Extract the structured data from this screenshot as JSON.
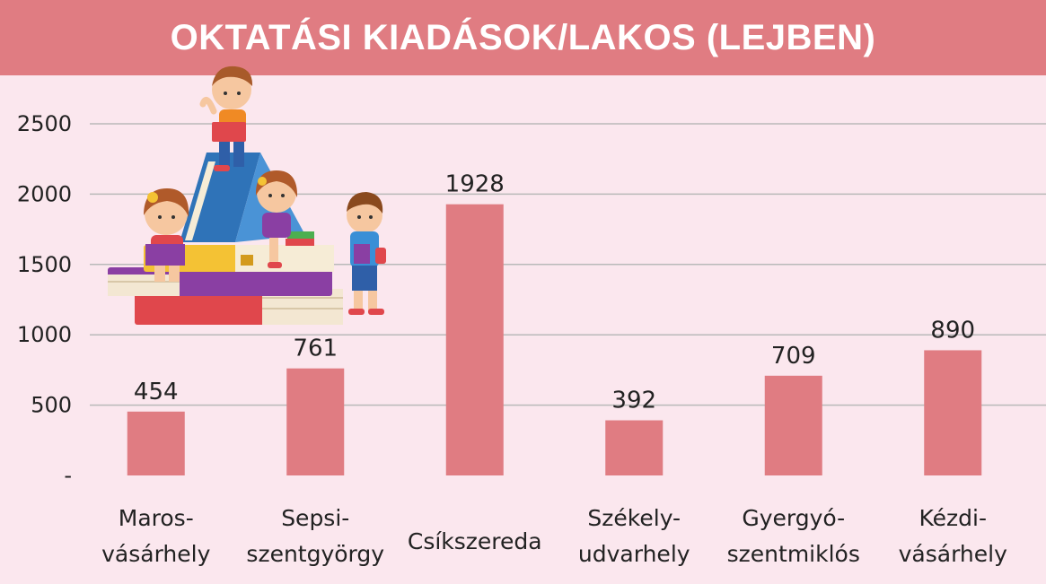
{
  "colors": {
    "background": "#fbe7ee",
    "title_bar": "#e07c82",
    "bar": "#e07c82",
    "grid": "#b9b9b9"
  },
  "illustration": {
    "icon": "children-reading-on-books-illustration"
  },
  "chart_data": {
    "type": "bar",
    "title": "OKTATÁSI KIADÁSOK/LAKOS (LEJBEN)",
    "categories": [
      [
        "Maros-",
        "vásárhely"
      ],
      [
        "Sepsi-",
        "szentgyörgy"
      ],
      [
        "Csíkszereda"
      ],
      [
        "Székely-",
        "udvarhely"
      ],
      [
        "Gyergyó-",
        "szentmiklós"
      ],
      [
        "Kézdi-",
        "vásárhely"
      ]
    ],
    "values": [
      454,
      761,
      1928,
      392,
      709,
      890
    ],
    "data_labels": [
      "454",
      "761",
      "1928",
      "392",
      "709",
      "890"
    ],
    "ylim": [
      0,
      2500
    ],
    "yticks": [
      0,
      500,
      1000,
      1500,
      2000,
      2500
    ],
    "ytick_labels": [
      "-",
      "500",
      "1000",
      "1500",
      "2000",
      "2500"
    ],
    "grid": true,
    "legend": "none"
  }
}
